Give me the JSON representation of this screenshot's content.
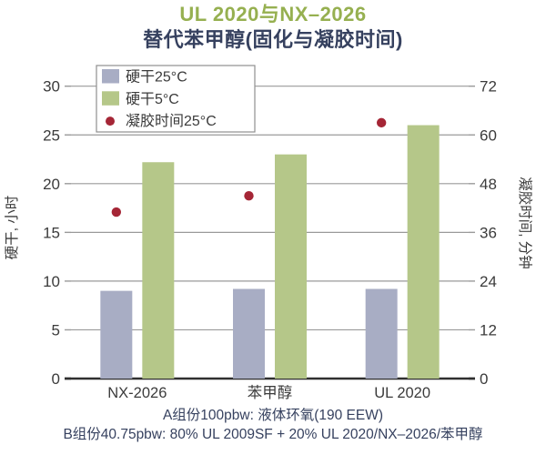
{
  "header": {
    "title_line1": "UL 2020与NX–2026",
    "title_line2": "替代苯甲醇(固化与凝胶时间)",
    "title_color": "#96b050",
    "subtitle_color": "#36415f"
  },
  "chart_data": {
    "type": "bar",
    "categories": [
      "NX-2026",
      "苯甲醇",
      "UL 2020"
    ],
    "series": [
      {
        "name": "硬干25°C",
        "type": "bar",
        "axis": "left",
        "color": "#a8adc4",
        "values": [
          9.0,
          9.2,
          9.2
        ]
      },
      {
        "name": "硬干5°C",
        "type": "bar",
        "axis": "left",
        "color": "#b5c789",
        "values": [
          22.2,
          23.0,
          26.0
        ]
      },
      {
        "name": "凝胶时间25°C",
        "type": "scatter",
        "axis": "right",
        "color": "#a52636",
        "values": [
          41,
          45,
          63
        ]
      }
    ],
    "left_axis": {
      "label": "硬干, 小时",
      "ticks": [
        0,
        5,
        10,
        15,
        20,
        25,
        30
      ],
      "min": 0,
      "max": 31
    },
    "right_axis": {
      "label": "凝胶时间, 分钟",
      "ticks": [
        0,
        12,
        24,
        36,
        48,
        60,
        72
      ],
      "min": 0,
      "max": 74.4
    },
    "legend": {
      "position": "top-left"
    },
    "grid": true,
    "colors": {
      "grid": "#9a9a9a",
      "axis": "#2f2f2f",
      "text": "#3b3b3b",
      "legend_border": "#8f8f8f"
    }
  },
  "footer": {
    "line1": "A组份100pbw: 液体环氧(190 EEW)",
    "line2": "B组份40.75pbw: 80% UL 2009SF + 20% UL 2020/NX–2026/苯甲醇",
    "color": "#36415f"
  }
}
